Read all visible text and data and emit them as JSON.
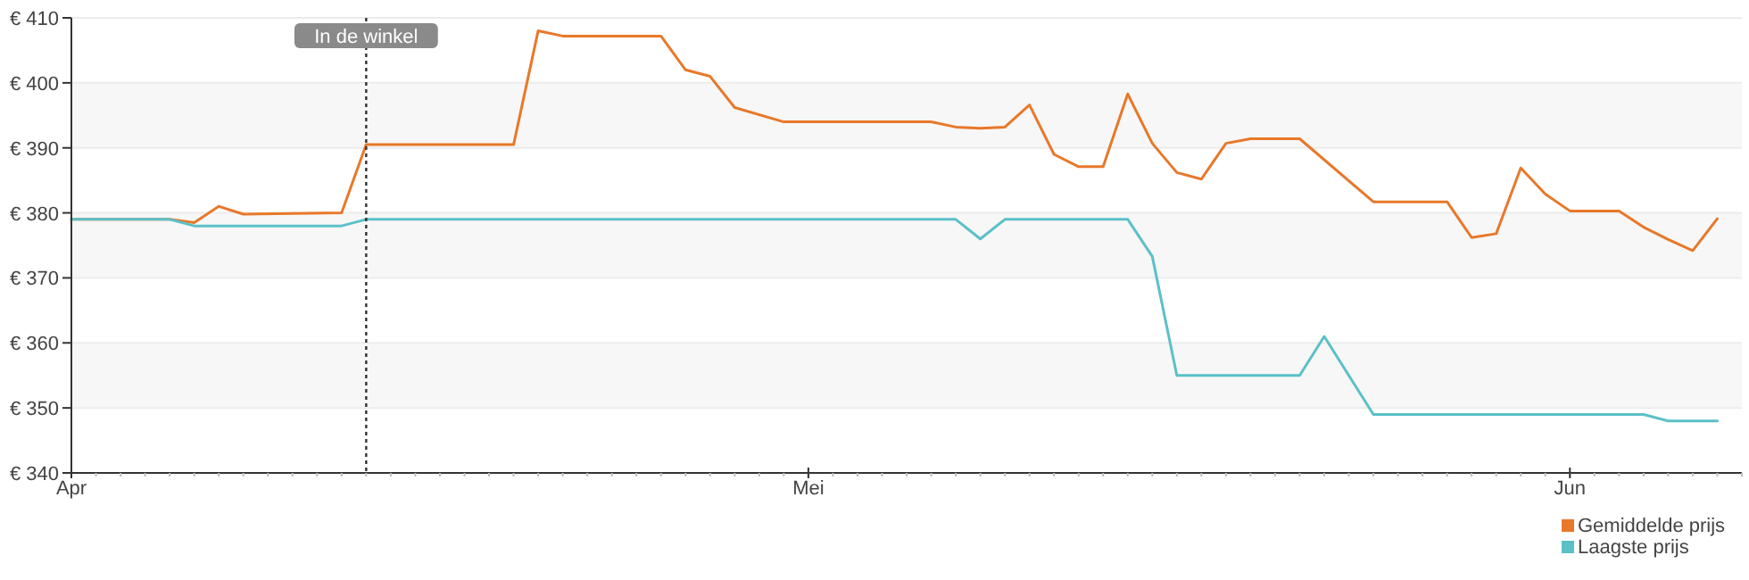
{
  "chart_data": {
    "type": "line",
    "xlim": [
      "--04-01",
      "--06-08"
    ],
    "xticks": [
      {
        "value": "--04-01",
        "label": "Apr"
      },
      {
        "value": "--05-01",
        "label": "Mei"
      },
      {
        "value": "--06-01",
        "label": "Jun"
      }
    ],
    "ylim": [
      340,
      410
    ],
    "yticks": [
      {
        "value": 340,
        "label": "€ 340"
      },
      {
        "value": 350,
        "label": "€ 350"
      },
      {
        "value": 360,
        "label": "€ 360"
      },
      {
        "value": 370,
        "label": "€ 370"
      },
      {
        "value": 380,
        "label": "€ 380"
      },
      {
        "value": 390,
        "label": "€ 390"
      },
      {
        "value": 400,
        "label": "€ 400"
      },
      {
        "value": 410,
        "label": "€ 410"
      }
    ],
    "grid": "y",
    "legend": "bottom right",
    "marker": "none",
    "line_style": "solid",
    "ref_lines": [
      {
        "axis": "x",
        "value": "--04-13",
        "label": "In de winkel",
        "color": "#333333",
        "line_style": "dotted"
      }
    ],
    "series": [
      {
        "name": "Gemiddelde prijs",
        "color": "#e8782a",
        "x": [
          "--04-01",
          "--04-05",
          "--04-06",
          "--04-07",
          "--04-08",
          "--04-12",
          "--04-13",
          "--04-19",
          "--04-20",
          "--04-21",
          "--04-25",
          "--04-26",
          "--04-27",
          "--04-28",
          "--04-30",
          "--05-06",
          "--05-07",
          "--05-08",
          "--05-09",
          "--05-10",
          "--05-11",
          "--05-12",
          "--05-13",
          "--05-14",
          "--05-15",
          "--05-16",
          "--05-17",
          "--05-18",
          "--05-19",
          "--05-21",
          "--05-24",
          "--05-27",
          "--05-28",
          "--05-29",
          "--05-30",
          "--05-31",
          "--06-01",
          "--06-03",
          "--06-04",
          "--06-05",
          "--06-06",
          "--06-07"
        ],
        "values": [
          379,
          379,
          378.5,
          381,
          379.8,
          380,
          390.5,
          390.5,
          408,
          407.2,
          407.2,
          402,
          401,
          396.2,
          394,
          394,
          393.2,
          393,
          393.2,
          396.6,
          389,
          387.1,
          387.1,
          398.3,
          390.7,
          386.2,
          385.2,
          390.7,
          391.4,
          391.4,
          381.7,
          381.7,
          376.2,
          376.8,
          386.9,
          382.9,
          380.3,
          380.3,
          377.8,
          375.9,
          374.2,
          379.1
        ]
      },
      {
        "name": "Laagste prijs",
        "color": "#5bc0c8",
        "x": [
          "--04-01",
          "--04-05",
          "--04-06",
          "--04-12",
          "--04-13",
          "--05-07",
          "--05-08",
          "--05-09",
          "--05-14",
          "--05-15",
          "--05-16",
          "--05-21",
          "--05-22",
          "--05-24",
          "--06-04",
          "--06-05",
          "--06-07"
        ],
        "values": [
          379,
          379,
          378,
          378,
          379,
          379,
          376,
          379,
          379,
          373.3,
          355,
          355,
          361,
          349,
          349,
          348,
          348
        ]
      }
    ]
  }
}
